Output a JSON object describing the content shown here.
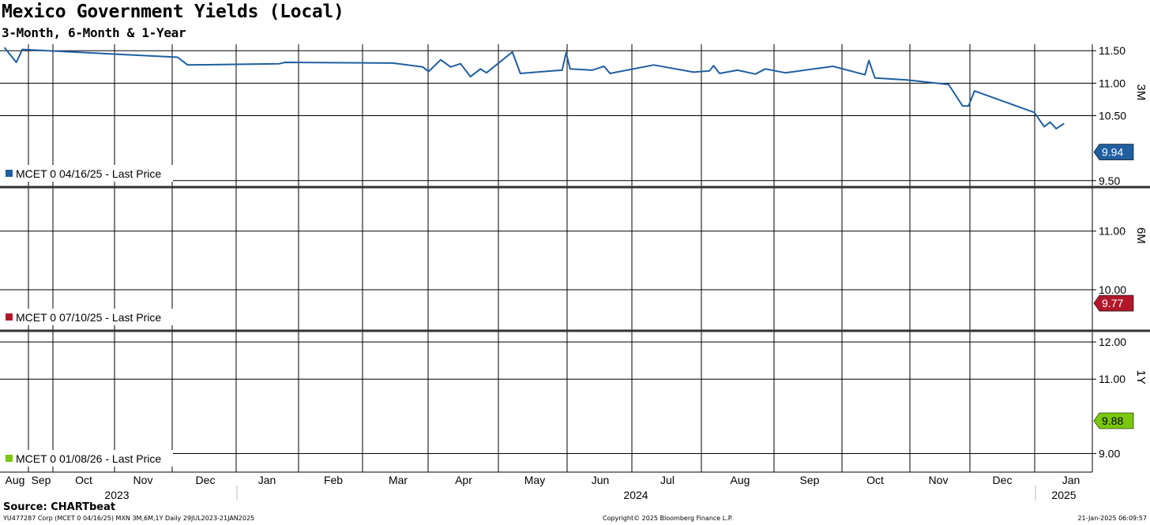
{
  "title": "Mexico Government Yields (Local)",
  "subtitle": "3-Month, 6-Month & 1-Year",
  "source": "Source: CHARTbeat",
  "footer": {
    "left": "YU477287 Corp (MCET 0 04/16/25) MXN 3M,6M,1Y  Daily 29JUL2023-21JAN2025",
    "center": "Copyright© 2025 Bloomberg Finance L.P.",
    "right": "21-Jan-2025 06:09:57"
  },
  "chart_data": {
    "type": "line",
    "x_ticks": [
      "Aug",
      "Sep",
      "Oct",
      "Nov",
      "Dec",
      "Jan",
      "Feb",
      "Mar",
      "Apr",
      "May",
      "Jun",
      "Jul",
      "Aug",
      "Sep",
      "Oct",
      "Nov",
      "Dec",
      "Jan"
    ],
    "years": [
      "2023",
      "2024",
      "2025"
    ],
    "x_range": [
      "2023-07-29",
      "2025-01-21"
    ],
    "grid": true,
    "panels": [
      {
        "axis_label": "3M",
        "legend": "MCET 0 04/16/25 - Last Price",
        "color": "#1f5fa0",
        "last_value": "9.94",
        "y_ticks": [
          "11.50",
          "11.00",
          "10.50",
          "9.50"
        ],
        "ylim": [
          9.4,
          11.6
        ],
        "series": [
          {
            "x": "2023-07-30",
            "y": 11.55
          },
          {
            "x": "2023-08-05",
            "y": 11.32
          },
          {
            "x": "2023-08-08",
            "y": 11.52
          },
          {
            "x": "2023-10-25",
            "y": 11.4
          },
          {
            "x": "2023-10-30",
            "y": 11.28
          },
          {
            "x": "2023-12-15",
            "y": 11.3
          },
          {
            "x": "2023-12-18",
            "y": 11.32
          },
          {
            "x": "2024-02-10",
            "y": 11.31
          },
          {
            "x": "2024-02-25",
            "y": 11.25
          },
          {
            "x": "2024-02-28",
            "y": 11.18
          },
          {
            "x": "2024-03-05",
            "y": 11.36
          },
          {
            "x": "2024-03-10",
            "y": 11.25
          },
          {
            "x": "2024-03-15",
            "y": 11.3
          },
          {
            "x": "2024-03-20",
            "y": 11.1
          },
          {
            "x": "2024-03-25",
            "y": 11.22
          },
          {
            "x": "2024-03-28",
            "y": 11.16
          },
          {
            "x": "2024-04-10",
            "y": 11.48
          },
          {
            "x": "2024-04-14",
            "y": 11.15
          },
          {
            "x": "2024-04-30",
            "y": 11.19
          },
          {
            "x": "2024-05-05",
            "y": 11.2
          },
          {
            "x": "2024-05-07",
            "y": 11.47
          },
          {
            "x": "2024-05-09",
            "y": 11.22
          },
          {
            "x": "2024-05-20",
            "y": 11.2
          },
          {
            "x": "2024-05-26",
            "y": 11.26
          },
          {
            "x": "2024-05-29",
            "y": 11.15
          },
          {
            "x": "2024-06-20",
            "y": 11.28
          },
          {
            "x": "2024-07-10",
            "y": 11.17
          },
          {
            "x": "2024-07-18",
            "y": 11.19
          },
          {
            "x": "2024-07-20",
            "y": 11.27
          },
          {
            "x": "2024-07-23",
            "y": 11.15
          },
          {
            "x": "2024-08-01",
            "y": 11.2
          },
          {
            "x": "2024-08-10",
            "y": 11.14
          },
          {
            "x": "2024-08-15",
            "y": 11.22
          },
          {
            "x": "2024-08-25",
            "y": 11.16
          },
          {
            "x": "2024-09-18",
            "y": 11.26
          },
          {
            "x": "2024-10-04",
            "y": 11.13
          },
          {
            "x": "2024-10-06",
            "y": 11.35
          },
          {
            "x": "2024-10-09",
            "y": 11.08
          },
          {
            "x": "2024-10-25",
            "y": 11.05
          },
          {
            "x": "2024-11-15",
            "y": 10.98
          },
          {
            "x": "2024-11-22",
            "y": 10.65
          },
          {
            "x": "2024-11-25",
            "y": 10.65
          },
          {
            "x": "2024-11-28",
            "y": 10.88
          },
          {
            "x": "2024-12-28",
            "y": 10.55
          },
          {
            "x": "2025-01-02",
            "y": 10.33
          },
          {
            "x": "2025-01-05",
            "y": 10.4
          },
          {
            "x": "2025-01-08",
            "y": 10.3
          },
          {
            "x": "2025-01-12",
            "y": 10.38
          }
        ]
      },
      {
        "axis_label": "6M",
        "legend": "MCET 0 07/10/25 - Last Price",
        "color": "#b0182a",
        "last_value": "9.77",
        "y_ticks": [
          "11.00",
          "10.00"
        ],
        "ylim": [
          9.3,
          11.75
        ],
        "series": []
      },
      {
        "axis_label": "1Y",
        "legend": "MCET 0 01/08/26 - Last Price",
        "color": "#7ac70c",
        "last_value": "9.88",
        "y_ticks": [
          "12.00",
          "11.00",
          "9.00"
        ],
        "ylim": [
          8.5,
          12.3
        ],
        "series": []
      }
    ]
  }
}
